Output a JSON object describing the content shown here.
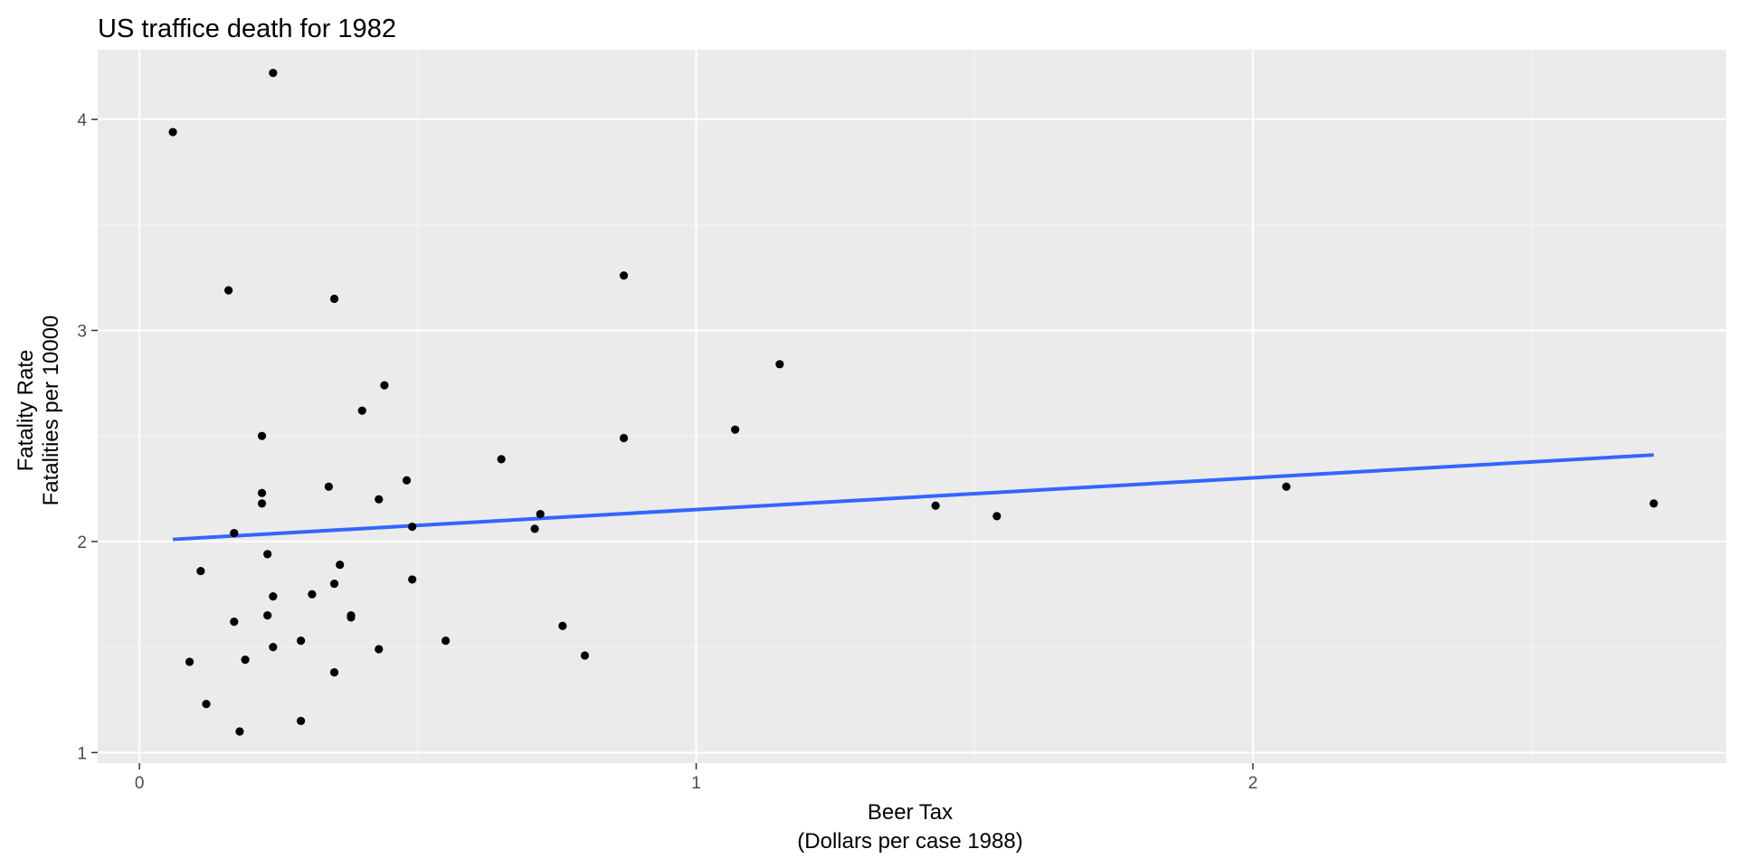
{
  "chart_data": {
    "type": "scatter",
    "title": "US traffice death for 1982",
    "xlabel": [
      "Beer Tax",
      "(Dollars per case 1988)"
    ],
    "ylabel": [
      "Fatality Rate",
      "Fatalities per 10000"
    ],
    "xlim": [
      -0.075,
      2.85
    ],
    "ylim": [
      0.95,
      4.33
    ],
    "x_ticks": [
      0,
      1,
      2
    ],
    "x_tick_labels": [
      "0",
      "1",
      "2"
    ],
    "y_ticks": [
      1,
      2,
      3,
      4
    ],
    "y_tick_labels": [
      "1",
      "2",
      "3",
      "4"
    ],
    "grid": true,
    "points": [
      {
        "x": 0.06,
        "y": 3.94
      },
      {
        "x": 0.24,
        "y": 4.22
      },
      {
        "x": 0.16,
        "y": 3.19
      },
      {
        "x": 0.35,
        "y": 3.15
      },
      {
        "x": 0.87,
        "y": 3.26
      },
      {
        "x": 1.15,
        "y": 2.84
      },
      {
        "x": 0.44,
        "y": 2.74
      },
      {
        "x": 0.4,
        "y": 2.62
      },
      {
        "x": 1.07,
        "y": 2.53
      },
      {
        "x": 0.22,
        "y": 2.5
      },
      {
        "x": 0.87,
        "y": 2.49
      },
      {
        "x": 0.65,
        "y": 2.39
      },
      {
        "x": 0.48,
        "y": 2.29
      },
      {
        "x": 0.34,
        "y": 2.26
      },
      {
        "x": 0.22,
        "y": 2.23
      },
      {
        "x": 0.43,
        "y": 2.2
      },
      {
        "x": 0.22,
        "y": 2.18
      },
      {
        "x": 0.72,
        "y": 2.13
      },
      {
        "x": 0.49,
        "y": 2.07
      },
      {
        "x": 0.71,
        "y": 2.06
      },
      {
        "x": 0.17,
        "y": 2.04
      },
      {
        "x": 0.23,
        "y": 1.94
      },
      {
        "x": 0.36,
        "y": 1.89
      },
      {
        "x": 0.11,
        "y": 1.86
      },
      {
        "x": 0.49,
        "y": 1.82
      },
      {
        "x": 0.35,
        "y": 1.8
      },
      {
        "x": 0.31,
        "y": 1.75
      },
      {
        "x": 0.24,
        "y": 1.74
      },
      {
        "x": 0.38,
        "y": 1.65
      },
      {
        "x": 0.38,
        "y": 1.64
      },
      {
        "x": 0.23,
        "y": 1.65
      },
      {
        "x": 0.17,
        "y": 1.62
      },
      {
        "x": 0.76,
        "y": 1.6
      },
      {
        "x": 0.29,
        "y": 1.53
      },
      {
        "x": 0.55,
        "y": 1.53
      },
      {
        "x": 0.24,
        "y": 1.5
      },
      {
        "x": 0.43,
        "y": 1.49
      },
      {
        "x": 0.8,
        "y": 1.46
      },
      {
        "x": 0.19,
        "y": 1.44
      },
      {
        "x": 0.09,
        "y": 1.43
      },
      {
        "x": 0.35,
        "y": 1.38
      },
      {
        "x": 0.12,
        "y": 1.23
      },
      {
        "x": 0.29,
        "y": 1.15
      },
      {
        "x": 0.18,
        "y": 1.1
      },
      {
        "x": 1.43,
        "y": 2.17
      },
      {
        "x": 1.54,
        "y": 2.12
      },
      {
        "x": 2.06,
        "y": 2.26
      },
      {
        "x": 2.72,
        "y": 2.18
      }
    ],
    "fit_line": {
      "x": [
        0.06,
        2.72
      ],
      "y": [
        2.01,
        2.41
      ]
    },
    "colors": {
      "panel": "#ebebeb",
      "grid_major": "#ffffff",
      "grid_minor": "#f4f4f4",
      "points": "#000000",
      "fit_line": "#3366ff",
      "tick_label": "#4d4d4d",
      "tick_mark": "#333333"
    }
  }
}
